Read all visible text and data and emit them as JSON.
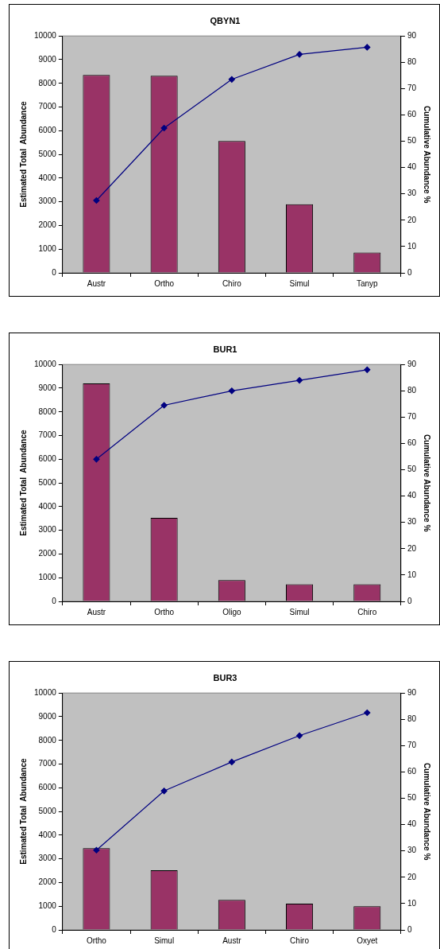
{
  "chart_data": [
    {
      "type": "bar",
      "title": "QBYN1",
      "ylabel": "Estimated Total  Abundance",
      "y2label": "Cumulative Abundance %",
      "categories": [
        "Austr",
        "Ortho",
        "Chiro",
        "Simul",
        "Tanyp"
      ],
      "ylim": [
        0,
        10000
      ],
      "yticks": [
        0,
        1000,
        2000,
        3000,
        4000,
        5000,
        6000,
        7000,
        8000,
        9000,
        10000
      ],
      "y2lim": [
        0,
        90
      ],
      "y2ticks": [
        0,
        10,
        20,
        30,
        40,
        50,
        60,
        70,
        80,
        90
      ],
      "grid": false,
      "marker": "diamond",
      "series": [
        {
          "color": "#993366",
          "values": [
            8350,
            8320,
            5570,
            2900,
            860
          ]
        },
        {
          "type": "line",
          "axis": "y2",
          "color": "#000080",
          "values": [
            27.5,
            55,
            73.5,
            83,
            85.7
          ]
        }
      ]
    },
    {
      "type": "bar",
      "title": "BUR1",
      "ylabel": "Estimated Total  Abundance",
      "y2label": "Cumulative Abundance %",
      "categories": [
        "Austr",
        "Ortho",
        "Oligo",
        "Simul",
        "Chiro"
      ],
      "ylim": [
        0,
        10000
      ],
      "yticks": [
        0,
        1000,
        2000,
        3000,
        4000,
        5000,
        6000,
        7000,
        8000,
        9000,
        10000
      ],
      "y2lim": [
        0,
        90
      ],
      "y2ticks": [
        0,
        10,
        20,
        30,
        40,
        50,
        60,
        70,
        80,
        90
      ],
      "grid": false,
      "marker": "diamond",
      "series": [
        {
          "color": "#993366",
          "values": [
            9200,
            3530,
            900,
            720,
            720
          ]
        },
        {
          "type": "line",
          "axis": "y2",
          "color": "#000080",
          "values": [
            54,
            74.5,
            80,
            84,
            88
          ]
        }
      ]
    },
    {
      "type": "bar",
      "title": "BUR3",
      "ylabel": "Estimated Total  Abundance",
      "y2label": "Cumulative Abundance %",
      "categories": [
        "Ortho",
        "Simul",
        "Austr",
        "Chiro",
        "Oxyet"
      ],
      "ylim": [
        0,
        10000
      ],
      "yticks": [
        0,
        1000,
        2000,
        3000,
        4000,
        5000,
        6000,
        7000,
        8000,
        9000,
        10000
      ],
      "y2lim": [
        0,
        90
      ],
      "y2ticks": [
        0,
        10,
        20,
        30,
        40,
        50,
        60,
        70,
        80,
        90
      ],
      "grid": false,
      "marker": "diamond",
      "series": [
        {
          "color": "#993366",
          "values": [
            3450,
            2520,
            1270,
            1110,
            1000
          ]
        },
        {
          "type": "line",
          "axis": "y2",
          "color": "#000080",
          "values": [
            30.3,
            52.8,
            63.8,
            73.8,
            82.5
          ]
        }
      ]
    }
  ]
}
